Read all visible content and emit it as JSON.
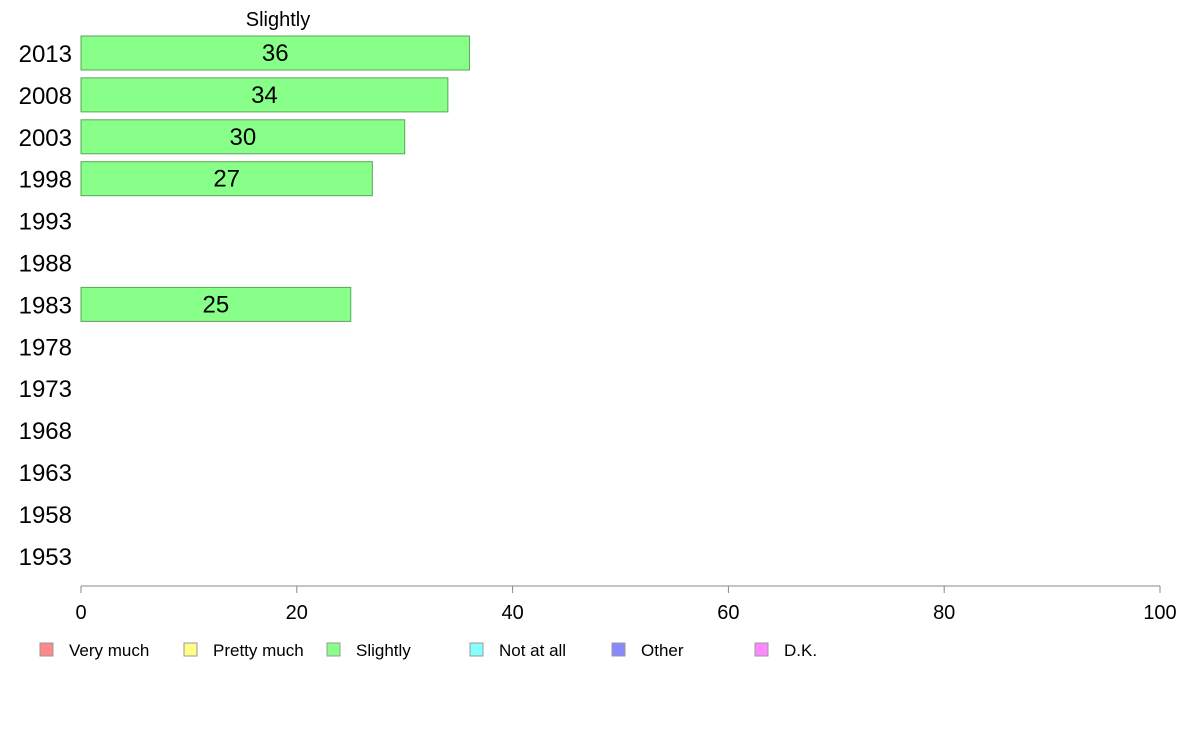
{
  "chart_data": {
    "type": "bar",
    "orientation": "horizontal",
    "series_title": "Slightly",
    "categories": [
      "2013",
      "2008",
      "2003",
      "1998",
      "1993",
      "1988",
      "1983",
      "1978",
      "1973",
      "1968",
      "1963",
      "1958",
      "1953"
    ],
    "series": [
      {
        "name": "Slightly",
        "values": [
          36,
          34,
          30,
          27,
          null,
          null,
          25,
          null,
          null,
          null,
          null,
          null,
          null
        ],
        "labels": [
          "36",
          "34",
          "30",
          "27",
          "",
          "",
          "25",
          "",
          "",
          "",
          "",
          "",
          ""
        ],
        "color": "#88ff88"
      }
    ],
    "xlim": [
      0,
      100
    ],
    "xticks": [
      "0",
      "20",
      "40",
      "60",
      "80",
      "100"
    ],
    "grid": false,
    "legend_position": "bottom",
    "legend": [
      {
        "label": "Very much",
        "color": "#ff8888"
      },
      {
        "label": "Pretty much",
        "color": "#ffff88"
      },
      {
        "label": "Slightly",
        "color": "#88ff88"
      },
      {
        "label": "Not at all",
        "color": "#88ffff"
      },
      {
        "label": "Other",
        "color": "#8888ff"
      },
      {
        "label": "D.K.",
        "color": "#ff88ff"
      }
    ]
  }
}
